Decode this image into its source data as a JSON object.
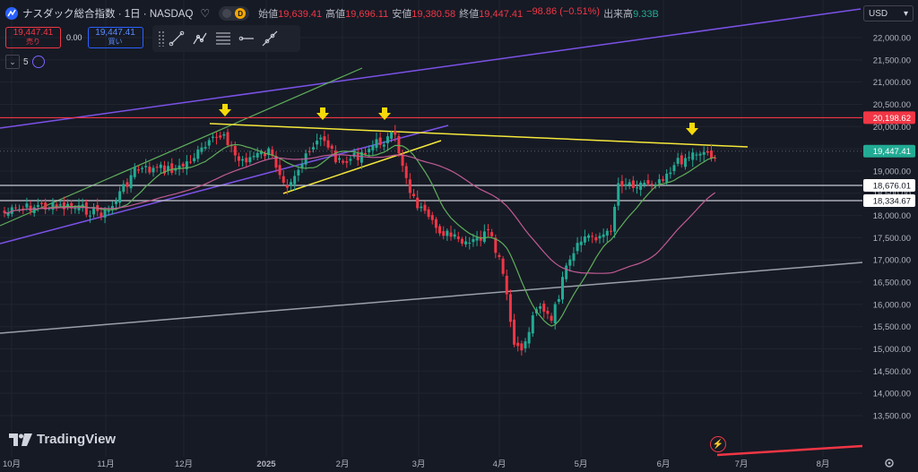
{
  "header": {
    "symbol": "ナスダック総合指数 · 1日 · NASDAQ",
    "badge": "D",
    "ohlc": [
      {
        "label": "始値",
        "value": "19,639.41"
      },
      {
        "label": "高値",
        "value": "19,696.11"
      },
      {
        "label": "安値",
        "value": "19,380.58"
      },
      {
        "label": "終値",
        "value": "19,447.41"
      }
    ],
    "change": "−98.86 (−0.51%)",
    "volume_label": "出来高",
    "volume_value": "9.33B"
  },
  "trade": {
    "sell_price": "19,447.41",
    "sell_label": "売り",
    "spread": "0.00",
    "buy_price": "19,447.41",
    "buy_label": "買い"
  },
  "toolbar": {
    "tools": [
      "trend-line-icon",
      "path-icon",
      "fib-lines-icon",
      "horizontal-ray-icon",
      "extended-line-icon"
    ]
  },
  "indicator": {
    "count": "5"
  },
  "currency": "USD",
  "brand": "TradingView",
  "colors": {
    "up": "#22ab94",
    "down": "#f23645",
    "resistance": "#f23645",
    "yellow": "#f5e83a",
    "purple": "#7b52e8",
    "green_channel": "#5fae5a",
    "grey_line": "#9aa0aa",
    "ma_short": "#5fae5a",
    "ma_long": "#c25b95",
    "arrow": "#f5d90a"
  },
  "chart_data": {
    "type": "candlestick",
    "y_ticks": [
      "22,000.00",
      "21,500.00",
      "21,000.00",
      "20,500.00",
      "20,000.00",
      "19,500.00",
      "19,000.00",
      "18,500.00",
      "18,000.00",
      "17,500.00",
      "17,000.00",
      "16,500.00",
      "16,000.00",
      "15,500.00",
      "15,000.00",
      "14,500.00",
      "14,000.00",
      "13,500.00"
    ],
    "x_ticks": [
      "10月",
      "11月",
      "12月",
      "2025",
      "2月",
      "3月",
      "4月",
      "5月",
      "6月",
      "7月",
      "8月"
    ],
    "price_labels": [
      {
        "text": "20,198.62",
        "value": 20198.62,
        "style": "red"
      },
      {
        "text": "19,447.41",
        "value": 19447.41,
        "style": "teal"
      },
      {
        "text": "18,676.01",
        "value": 18676.01,
        "style": "white"
      },
      {
        "text": "18,334.67",
        "value": 18334.67,
        "style": "white"
      }
    ],
    "resistance_level": 20198.62,
    "support_levels": [
      18676.01,
      18334.67
    ],
    "last_price": 19447.41
  }
}
